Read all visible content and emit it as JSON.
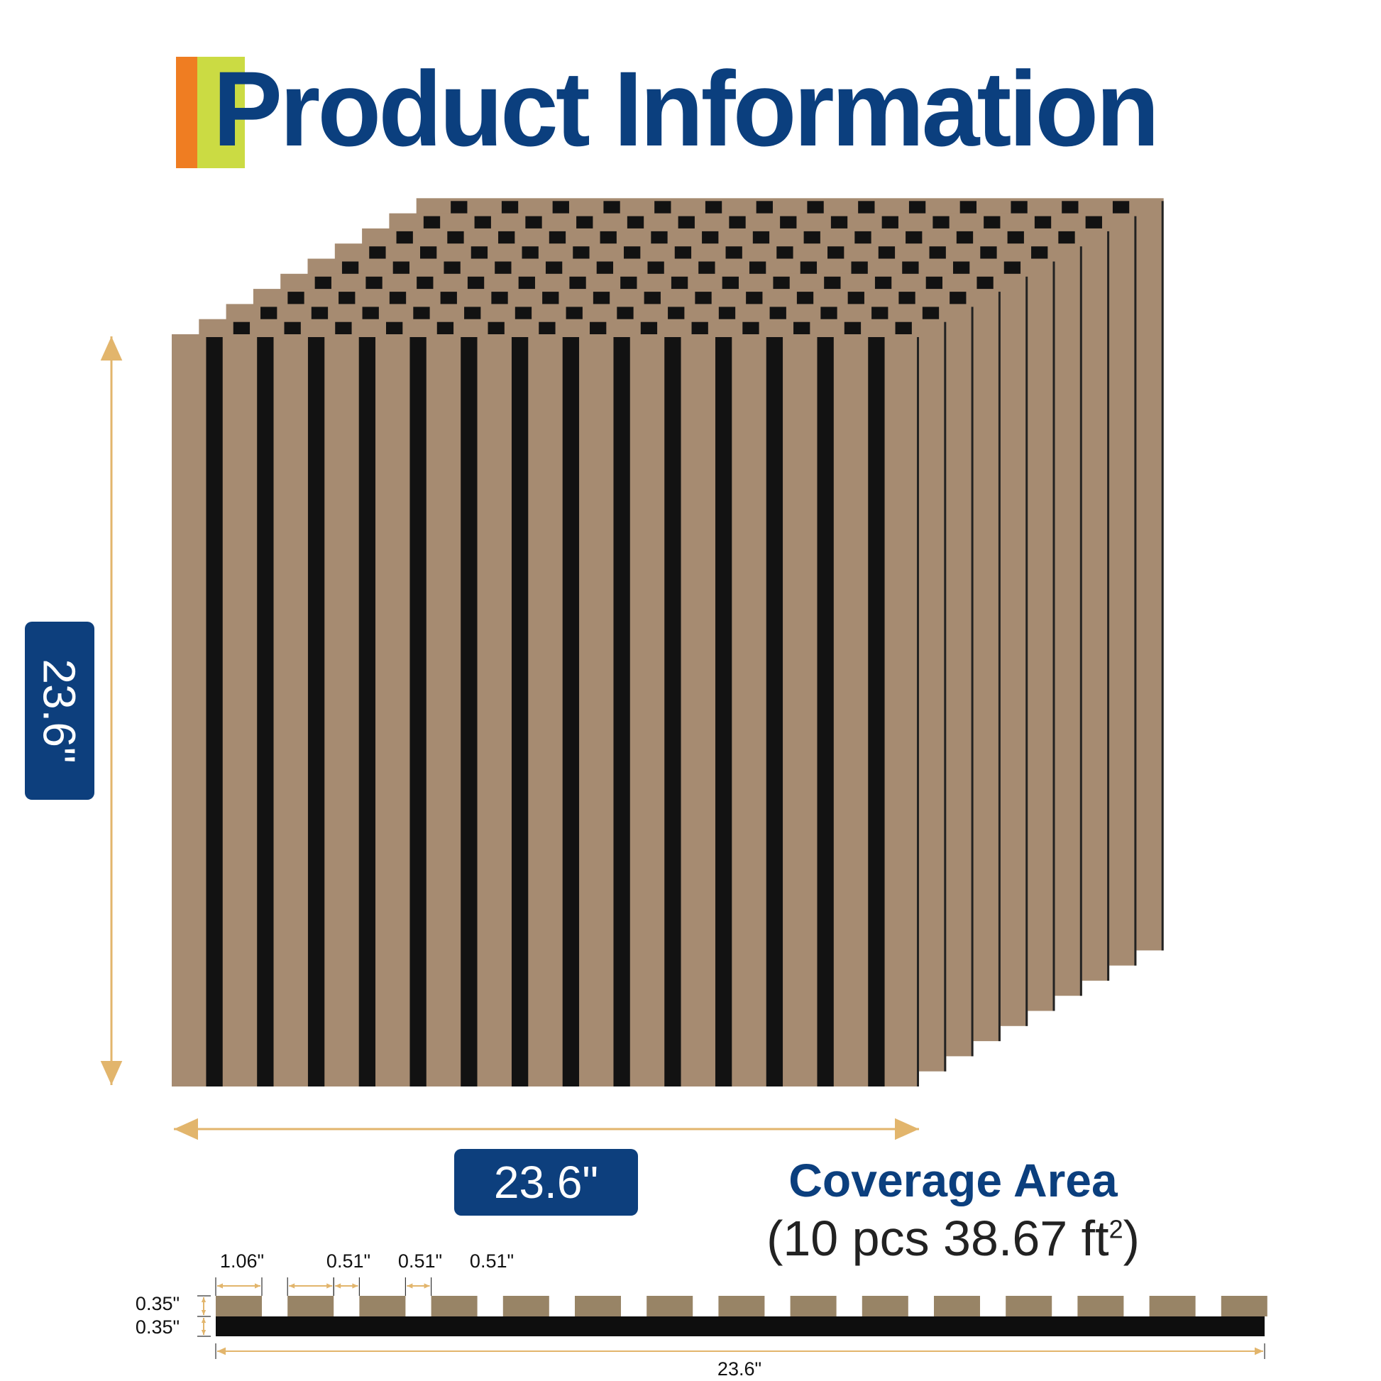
{
  "title": "Product Information",
  "colors": {
    "brand_blue": "#0d3f7d",
    "accent_orange": "#ef7d22",
    "accent_green": "#cbdb43",
    "wood": "#a68b71",
    "groove": "#121212",
    "arrow": "#e2b56c",
    "profile_wood": "#988466"
  },
  "panel": {
    "height_label": "23.6\"",
    "width_label": "23.6\"",
    "stack_count": 10,
    "slats_per_panel": 15
  },
  "coverage": {
    "title": "Coverage Area",
    "prefix": "(10 pcs 38.67 ft",
    "superscript": "2",
    "suffix": ")"
  },
  "profile": {
    "slat_width": "1.06\"",
    "gap_labels": [
      "0.51\"",
      "0.51\"",
      "0.51\""
    ],
    "slat_thickness": "0.35\"",
    "backing_thickness": "0.35\"",
    "total_width": "23.6\""
  }
}
